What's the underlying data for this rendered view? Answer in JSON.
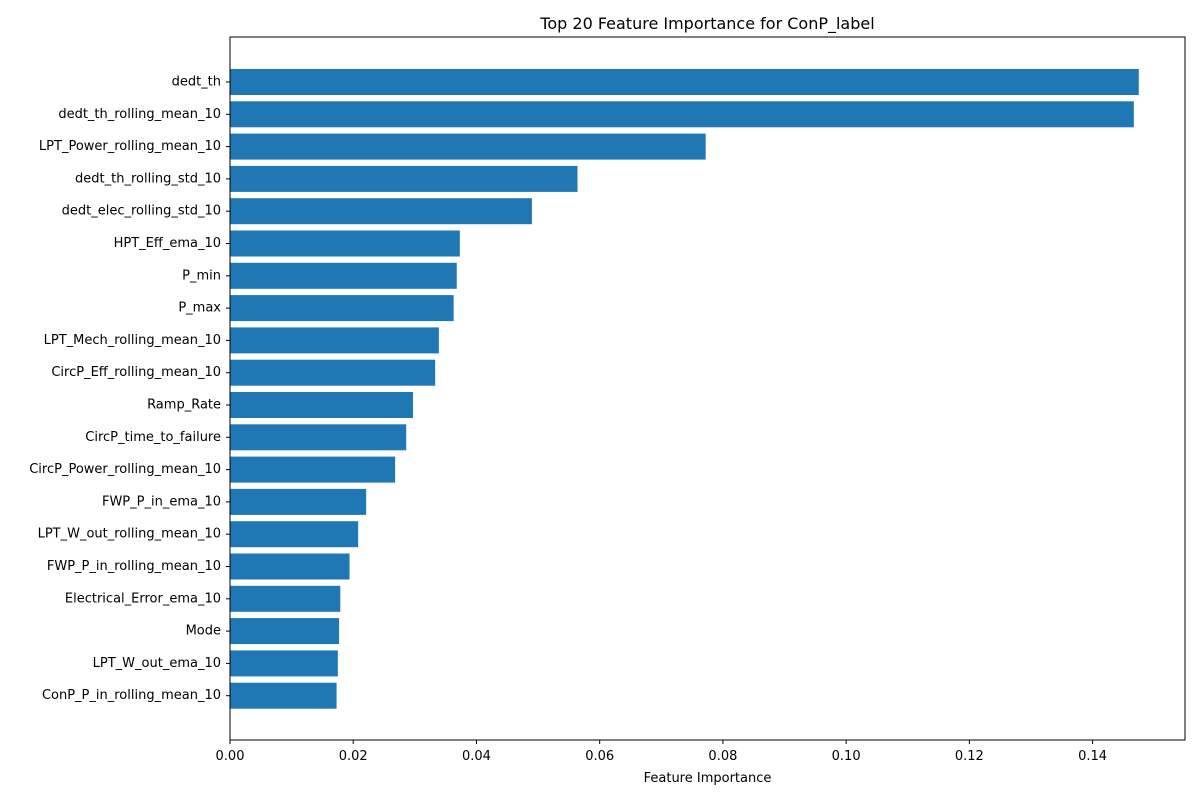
{
  "chart_data": {
    "type": "bar",
    "orientation": "horizontal",
    "title": "Top 20 Feature Importance for ConP_label",
    "xlabel": "Feature Importance",
    "ylabel": "",
    "xlim": [
      0,
      0.155
    ],
    "xticks": [
      0,
      0.02,
      0.04,
      0.06,
      0.08,
      0.1,
      0.12,
      0.14
    ],
    "xtick_labels": [
      "0.00",
      "0.02",
      "0.04",
      "0.06",
      "0.08",
      "0.10",
      "0.12",
      "0.14"
    ],
    "grid": false,
    "bar_color": "#1f77b4",
    "categories": [
      "dedt_th",
      "dedt_th_rolling_mean_10",
      "LPT_Power_rolling_mean_10",
      "dedt_th_rolling_std_10",
      "dedt_elec_rolling_std_10",
      "HPT_Eff_ema_10",
      "P_min",
      "P_max",
      "LPT_Mech_rolling_mean_10",
      "CircP_Eff_rolling_mean_10",
      "Ramp_Rate",
      "CircP_time_to_failure",
      "CircP_Power_rolling_mean_10",
      "FWP_P_in_ema_10",
      "LPT_W_out_rolling_mean_10",
      "FWP_P_in_rolling_mean_10",
      "Electrical_Error_ema_10",
      "Mode",
      "LPT_W_out_ema_10",
      "ConP_P_in_rolling_mean_10"
    ],
    "values": [
      0.1475,
      0.1467,
      0.0772,
      0.0564,
      0.049,
      0.0373,
      0.0368,
      0.0363,
      0.0339,
      0.0333,
      0.0297,
      0.0286,
      0.0268,
      0.0221,
      0.0208,
      0.0194,
      0.0179,
      0.0177,
      0.0175,
      0.0173
    ]
  }
}
